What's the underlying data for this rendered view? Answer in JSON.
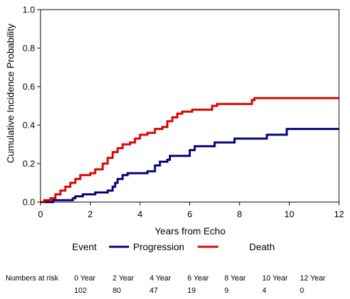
{
  "chart_data": {
    "type": "line",
    "subtype": "step",
    "xlabel": "Years from Echo",
    "ylabel": "Cumulative Incidence Probability",
    "xlim": [
      0,
      12
    ],
    "ylim": [
      0,
      1
    ],
    "x_ticks": [
      "0",
      "2",
      "4",
      "6",
      "8",
      "10",
      "12"
    ],
    "y_ticks": [
      "0.0",
      "0.2",
      "0.4",
      "0.6",
      "0.8",
      "1.0"
    ],
    "grid": false,
    "legend": {
      "title": "Event",
      "placement": "bottom"
    },
    "series": [
      {
        "name": "Progression",
        "color": "#000080",
        "points": [
          [
            0,
            0
          ],
          [
            0.5,
            0.01
          ],
          [
            1.2,
            0.01
          ],
          [
            1.3,
            0.02
          ],
          [
            1.4,
            0.03
          ],
          [
            1.7,
            0.04
          ],
          [
            2.2,
            0.05
          ],
          [
            2.7,
            0.06
          ],
          [
            2.9,
            0.08
          ],
          [
            3.0,
            0.1
          ],
          [
            3.1,
            0.12
          ],
          [
            3.3,
            0.14
          ],
          [
            3.5,
            0.15
          ],
          [
            4.3,
            0.16
          ],
          [
            4.6,
            0.19
          ],
          [
            4.8,
            0.21
          ],
          [
            5.1,
            0.22
          ],
          [
            5.2,
            0.24
          ],
          [
            6.0,
            0.27
          ],
          [
            6.2,
            0.29
          ],
          [
            7.0,
            0.31
          ],
          [
            7.8,
            0.33
          ],
          [
            9.1,
            0.35
          ],
          [
            9.9,
            0.38
          ],
          [
            12,
            0.38
          ]
        ]
      },
      {
        "name": "Death",
        "color": "#e00000",
        "points": [
          [
            0,
            0
          ],
          [
            0.15,
            0.01
          ],
          [
            0.4,
            0.02
          ],
          [
            0.6,
            0.04
          ],
          [
            0.8,
            0.06
          ],
          [
            1.0,
            0.08
          ],
          [
            1.2,
            0.1
          ],
          [
            1.4,
            0.12
          ],
          [
            1.6,
            0.14
          ],
          [
            2.0,
            0.15
          ],
          [
            2.2,
            0.17
          ],
          [
            2.5,
            0.2
          ],
          [
            2.7,
            0.23
          ],
          [
            2.9,
            0.26
          ],
          [
            3.1,
            0.28
          ],
          [
            3.3,
            0.3
          ],
          [
            3.6,
            0.31
          ],
          [
            3.8,
            0.33
          ],
          [
            4.0,
            0.35
          ],
          [
            4.3,
            0.36
          ],
          [
            4.6,
            0.38
          ],
          [
            4.9,
            0.39
          ],
          [
            5.1,
            0.42
          ],
          [
            5.3,
            0.44
          ],
          [
            5.5,
            0.46
          ],
          [
            5.7,
            0.47
          ],
          [
            6.1,
            0.48
          ],
          [
            6.9,
            0.5
          ],
          [
            7.1,
            0.51
          ],
          [
            8.5,
            0.53
          ],
          [
            8.6,
            0.54
          ],
          [
            12,
            0.54
          ]
        ]
      }
    ],
    "numbers_at_risk": {
      "label": "Numbers at risk",
      "columns": [
        "0 Year",
        "2 Year",
        "4 Year",
        "6 Year",
        "8 Year",
        "10 Year",
        "12 Year"
      ],
      "values": [
        "102",
        "80",
        "47",
        "19",
        "9",
        "4",
        "0"
      ]
    }
  }
}
